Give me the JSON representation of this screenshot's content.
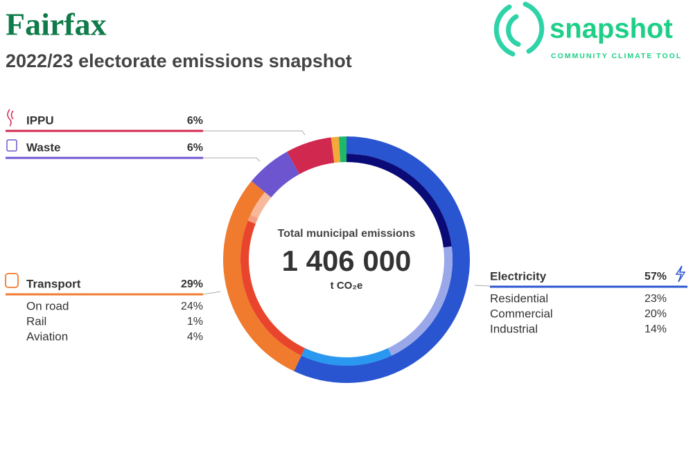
{
  "header": {
    "title": "Fairfax",
    "subtitle": "2022/23 electorate emissions snapshot"
  },
  "logo": {
    "name": "snapshot",
    "tagline": "COMMUNITY CLIMATE TOOL"
  },
  "chart_data": {
    "type": "donut",
    "center": {
      "title": "Total municipal emissions",
      "total": {
        "value": 1406000,
        "label": "1 406 000"
      },
      "unit": "t CO₂e"
    },
    "sectors": [
      {
        "name": "Electricity",
        "value": 57,
        "value_label": "57%",
        "color": "#2a55d0",
        "subsectors": [
          {
            "name": "Residential",
            "value": 23,
            "value_label": "23%",
            "color": "#0b0b78"
          },
          {
            "name": "Commercial",
            "value": 20,
            "value_label": "20%",
            "color": "#9aa8ea"
          },
          {
            "name": "Industrial",
            "value": 14,
            "value_label": "14%",
            "color": "#2a98f0"
          }
        ]
      },
      {
        "name": "Transport",
        "value": 29,
        "value_label": "29%",
        "color": "#f07a2e",
        "subsectors": [
          {
            "name": "On road",
            "value": 24,
            "value_label": "24%",
            "color": "#e8452c"
          },
          {
            "name": "Rail",
            "value": 1,
            "value_label": "1%",
            "color": "#f4a080"
          },
          {
            "name": "Aviation",
            "value": 4,
            "value_label": "4%",
            "color": "#f8b89a"
          }
        ]
      },
      {
        "name": "Waste",
        "value": 6,
        "value_label": "6%",
        "color": "#6e55d0"
      },
      {
        "name": "IPPU",
        "value": 6,
        "value_label": "6%",
        "color": "#d0284f"
      },
      {
        "name": null,
        "value": 1,
        "color": "#f5a93a"
      },
      {
        "name": null,
        "value": 1,
        "color": "#1db86a"
      }
    ]
  }
}
